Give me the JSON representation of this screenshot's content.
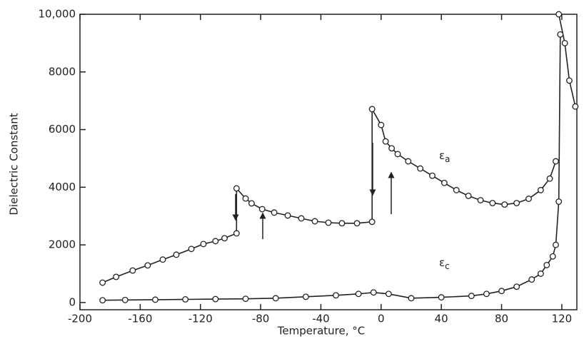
{
  "chart_data": {
    "type": "line",
    "x_label": "Temperature, °C",
    "y_label": "Dielectric Constant",
    "xlim": [
      -200,
      130
    ],
    "xticks": [
      -200,
      -160,
      -120,
      -80,
      -40,
      0,
      40,
      80,
      120
    ],
    "ylim": [
      -250,
      10000
    ],
    "yticks": [
      0,
      2000,
      4000,
      6000,
      8000,
      {
        "value": 10000,
        "label": "10,000"
      }
    ],
    "grid": false,
    "annotations": [
      {
        "symbol": "ε",
        "sub": "a"
      },
      {
        "symbol": "ε",
        "sub": "c"
      }
    ],
    "series": [
      {
        "color": "#222222",
        "x": [
          -185,
          -176,
          -165,
          -155,
          -145,
          -136,
          -126,
          -118,
          -110,
          -104,
          -96,
          -96,
          -90,
          -86,
          -79,
          -71,
          -62,
          -53,
          -44,
          -35,
          -26,
          -16,
          -6,
          -6,
          0,
          3,
          7,
          11,
          18,
          26,
          34,
          42,
          50,
          58,
          66,
          74,
          82,
          90,
          98,
          106,
          112,
          116,
          null,
          118,
          122,
          125,
          129
        ],
        "values": [
          690,
          890,
          1110,
          1290,
          1490,
          1660,
          1860,
          2030,
          2130,
          2230,
          2400,
          3960,
          3610,
          3440,
          3240,
          3120,
          3020,
          2920,
          2820,
          2770,
          2750,
          2750,
          2800,
          6710,
          6160,
          5590,
          5350,
          5150,
          4900,
          4650,
          4400,
          4150,
          3900,
          3700,
          3550,
          3450,
          3400,
          3450,
          3600,
          3900,
          4300,
          4900,
          null,
          10000,
          9000,
          7700,
          6800
        ]
      },
      {
        "color": "#222222",
        "x": [
          -185,
          -170,
          -150,
          -130,
          -110,
          -90,
          -70,
          -50,
          -30,
          -15,
          -5,
          5,
          20,
          40,
          60,
          70,
          80,
          90,
          100,
          106,
          110,
          114,
          116,
          118,
          119
        ],
        "values": [
          80,
          90,
          100,
          110,
          120,
          130,
          150,
          200,
          250,
          300,
          350,
          300,
          150,
          180,
          230,
          300,
          400,
          550,
          800,
          1000,
          1300,
          1600,
          2000,
          3500,
          9300
        ]
      }
    ]
  }
}
